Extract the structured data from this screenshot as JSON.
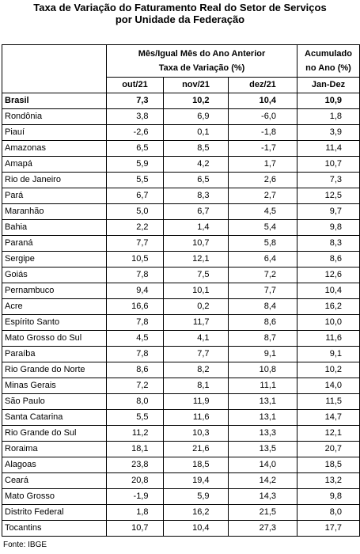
{
  "title": {
    "line1": "Taxa de Variação do Faturamento Real do Setor de Serviços",
    "line2": "por Unidade da Federação"
  },
  "header": {
    "group_label": "Mês/Igual Mês do Ano Anterior",
    "group_sublabel": "Taxa de Variação (%)",
    "acum_label_1": "Acumulado",
    "acum_label_2": "no Ano (%)",
    "col_out": "out/21",
    "col_nov": "nov/21",
    "col_dez": "dez/21",
    "col_acum": "Jan-Dez"
  },
  "rows": [
    {
      "uf": "Brasil",
      "out": "7,3",
      "nov": "10,2",
      "dez": "10,4",
      "acum": "10,9"
    },
    {
      "uf": "Rondônia",
      "out": "3,8",
      "nov": "6,9",
      "dez": "-6,0",
      "acum": "1,8"
    },
    {
      "uf": "Piauí",
      "out": "-2,6",
      "nov": "0,1",
      "dez": "-1,8",
      "acum": "3,9"
    },
    {
      "uf": "Amazonas",
      "out": "6,5",
      "nov": "8,5",
      "dez": "-1,7",
      "acum": "11,4"
    },
    {
      "uf": "Amapá",
      "out": "5,9",
      "nov": "4,2",
      "dez": "1,7",
      "acum": "10,7"
    },
    {
      "uf": "Rio de Janeiro",
      "out": "5,5",
      "nov": "6,5",
      "dez": "2,6",
      "acum": "7,3"
    },
    {
      "uf": "Pará",
      "out": "6,7",
      "nov": "8,3",
      "dez": "2,7",
      "acum": "12,5"
    },
    {
      "uf": "Maranhão",
      "out": "5,0",
      "nov": "6,7",
      "dez": "4,5",
      "acum": "9,7"
    },
    {
      "uf": "Bahia",
      "out": "2,2",
      "nov": "1,4",
      "dez": "5,4",
      "acum": "9,8"
    },
    {
      "uf": "Paraná",
      "out": "7,7",
      "nov": "10,7",
      "dez": "5,8",
      "acum": "8,3"
    },
    {
      "uf": "Sergipe",
      "out": "10,5",
      "nov": "12,1",
      "dez": "6,4",
      "acum": "8,6"
    },
    {
      "uf": "Goiás",
      "out": "7,8",
      "nov": "7,5",
      "dez": "7,2",
      "acum": "12,6"
    },
    {
      "uf": "Pernambuco",
      "out": "9,4",
      "nov": "10,1",
      "dez": "7,7",
      "acum": "10,4"
    },
    {
      "uf": "Acre",
      "out": "16,6",
      "nov": "0,2",
      "dez": "8,4",
      "acum": "16,2"
    },
    {
      "uf": "Espírito Santo",
      "out": "7,8",
      "nov": "11,7",
      "dez": "8,6",
      "acum": "10,0"
    },
    {
      "uf": "Mato Grosso do Sul",
      "out": "4,5",
      "nov": "4,1",
      "dez": "8,7",
      "acum": "11,6"
    },
    {
      "uf": "Paraíba",
      "out": "7,8",
      "nov": "7,7",
      "dez": "9,1",
      "acum": "9,1"
    },
    {
      "uf": "Rio Grande do Norte",
      "out": "8,6",
      "nov": "8,2",
      "dez": "10,8",
      "acum": "10,2"
    },
    {
      "uf": "Minas Gerais",
      "out": "7,2",
      "nov": "8,1",
      "dez": "11,1",
      "acum": "14,0"
    },
    {
      "uf": "São Paulo",
      "out": "8,0",
      "nov": "11,9",
      "dez": "13,1",
      "acum": "11,5"
    },
    {
      "uf": "Santa Catarina",
      "out": "5,5",
      "nov": "11,6",
      "dez": "13,1",
      "acum": "14,7"
    },
    {
      "uf": "Rio Grande do Sul",
      "out": "11,2",
      "nov": "10,3",
      "dez": "13,3",
      "acum": "12,1"
    },
    {
      "uf": "Roraima",
      "out": "18,1",
      "nov": "21,6",
      "dez": "13,5",
      "acum": "20,7"
    },
    {
      "uf": "Alagoas",
      "out": "23,8",
      "nov": "18,5",
      "dez": "14,0",
      "acum": "18,5"
    },
    {
      "uf": "Ceará",
      "out": "20,8",
      "nov": "19,4",
      "dez": "14,2",
      "acum": "13,2"
    },
    {
      "uf": "Mato Grosso",
      "out": "-1,9",
      "nov": "5,9",
      "dez": "14,3",
      "acum": "9,8"
    },
    {
      "uf": "Distrito Federal",
      "out": "1,8",
      "nov": "16,2",
      "dez": "21,5",
      "acum": "8,0"
    },
    {
      "uf": "Tocantins",
      "out": "10,7",
      "nov": "10,4",
      "dez": "27,3",
      "acum": "17,7"
    }
  ],
  "source": "Fonte: IBGE"
}
